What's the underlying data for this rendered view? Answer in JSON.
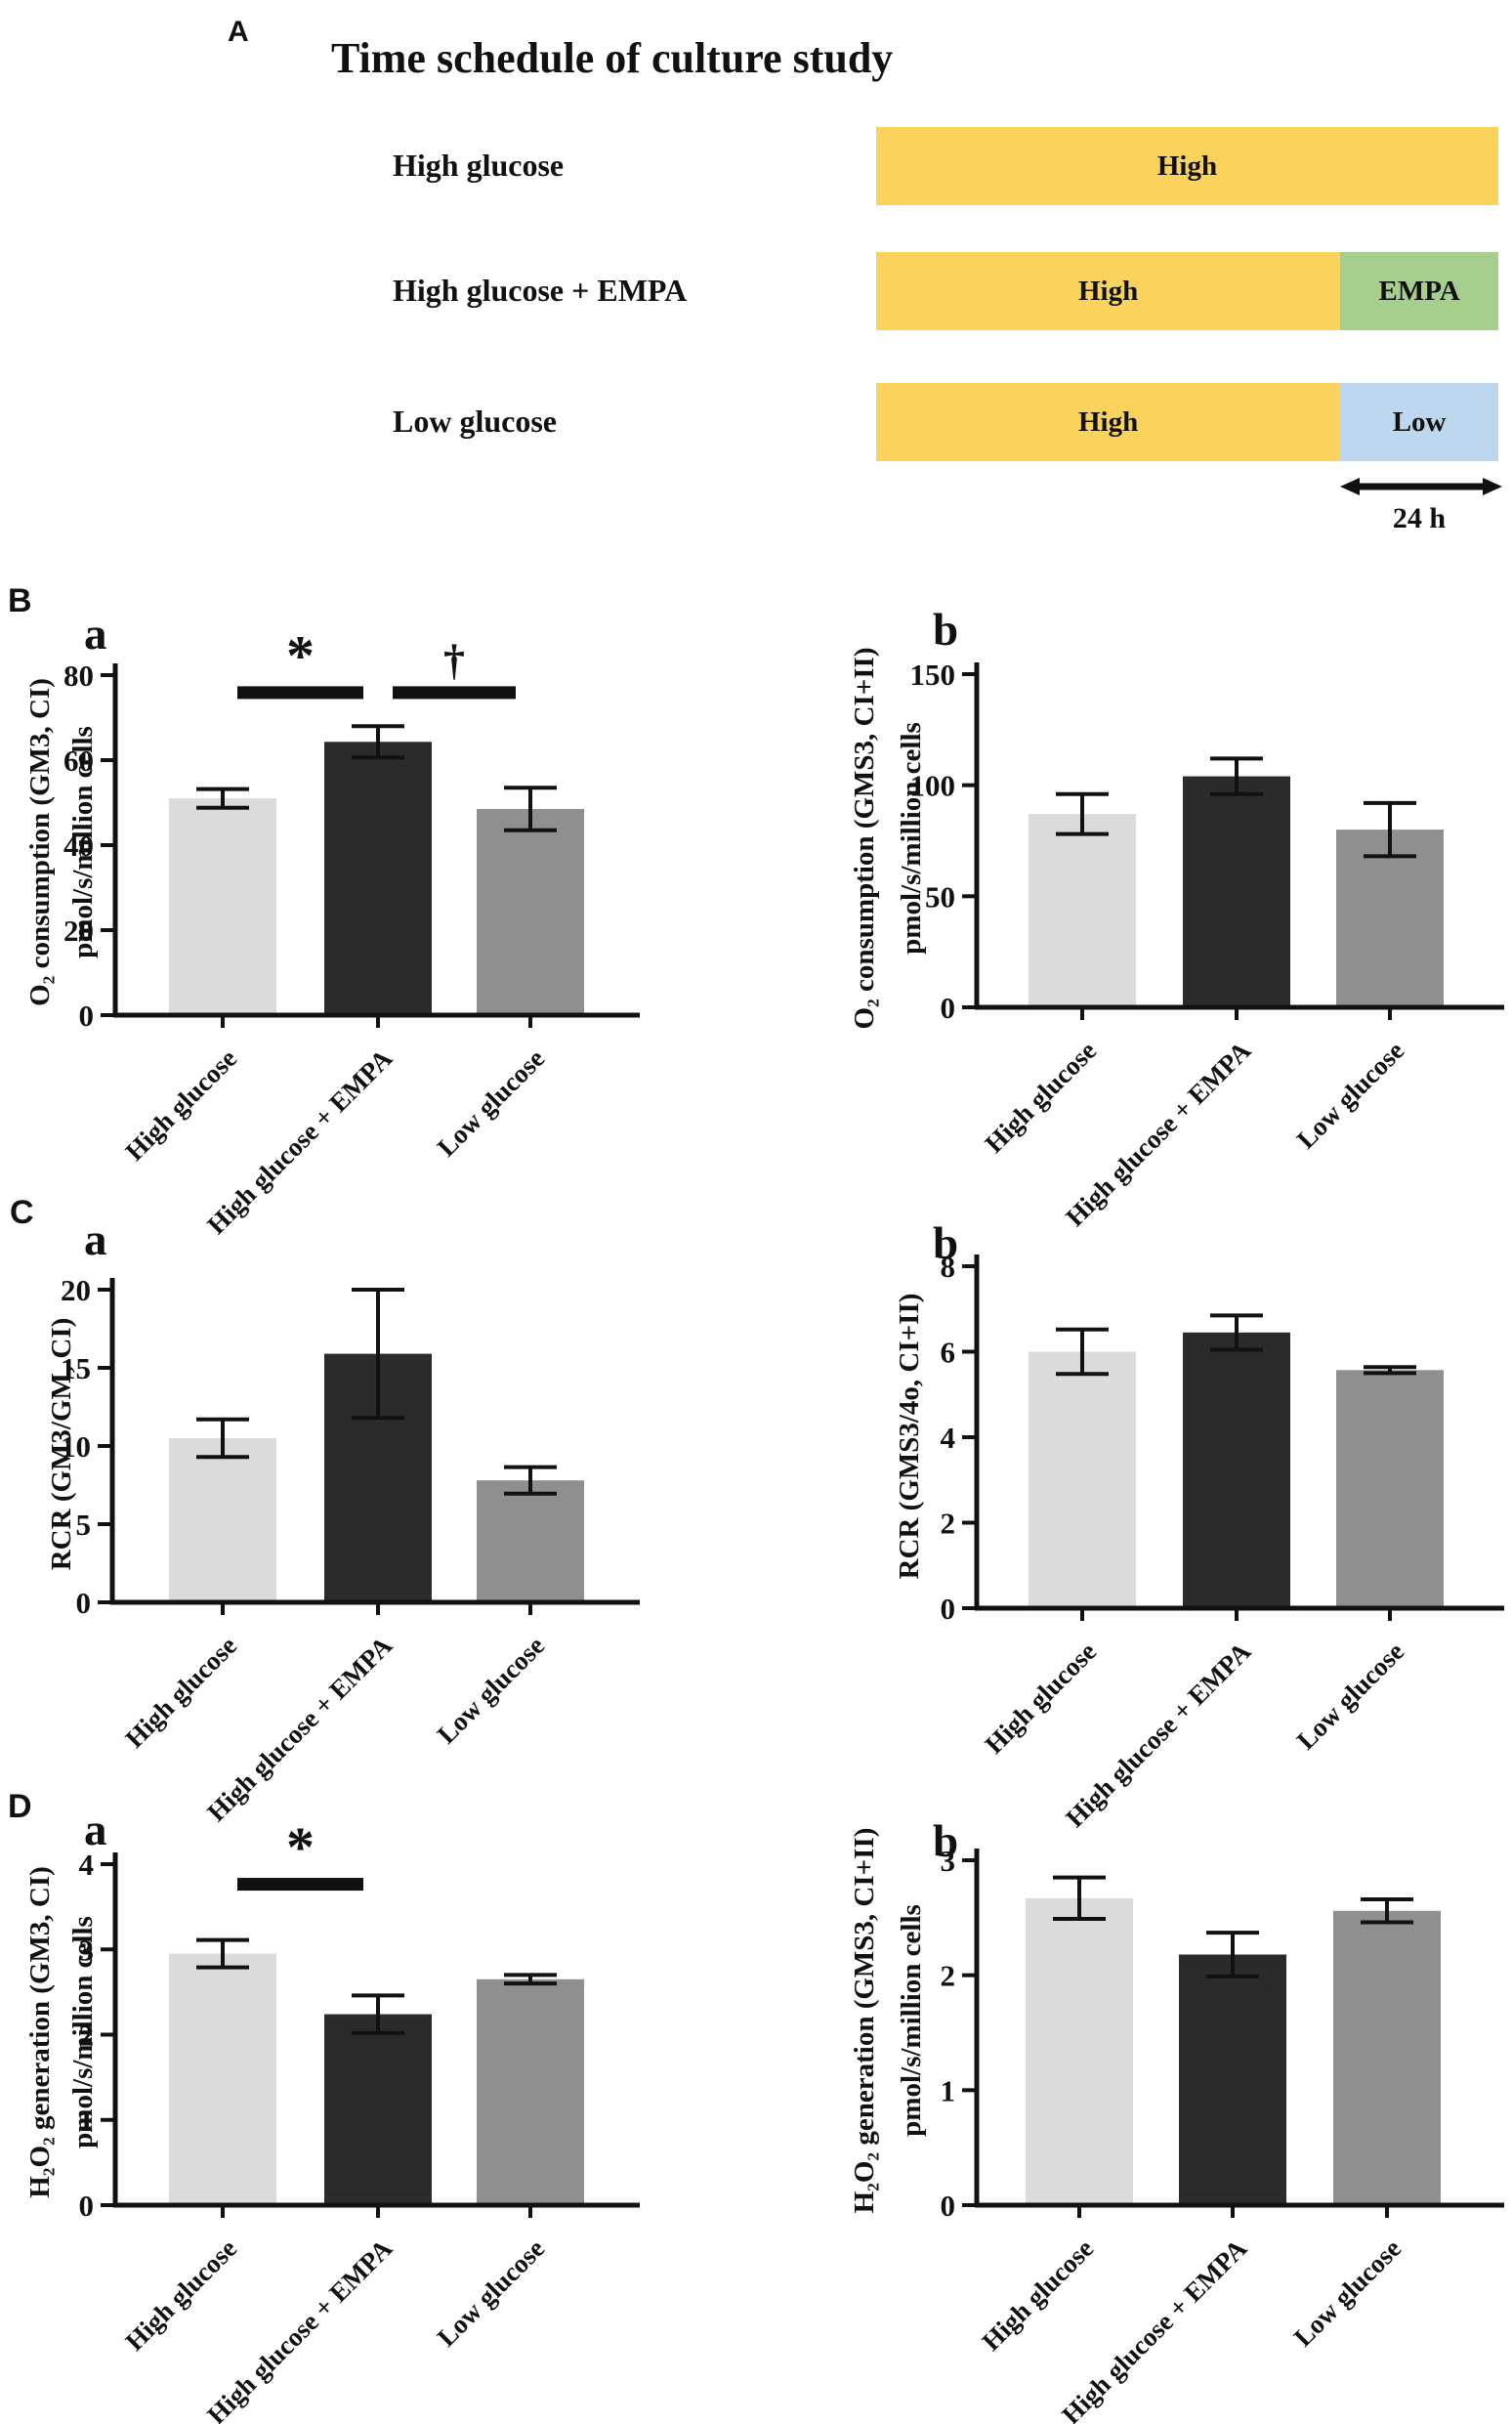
{
  "panel_a": {
    "label": "A",
    "title": "Time schedule of culture study",
    "arrow_label": "24 h",
    "colors": {
      "high": "#FBD35C",
      "empa": "#A6CE8C",
      "low": "#BDD7EE"
    },
    "rows": [
      {
        "label": "High glucose",
        "segments": [
          {
            "text": "High",
            "color_key": "high",
            "flex": 1
          }
        ]
      },
      {
        "label": "High glucose + EMPA",
        "segments": [
          {
            "text": "High",
            "color_key": "high",
            "flex": 0.746
          },
          {
            "text": "EMPA",
            "color_key": "empa",
            "flex": 0.254
          }
        ]
      },
      {
        "label": "Low glucose",
        "segments": [
          {
            "text": "High",
            "color_key": "high",
            "flex": 0.746
          },
          {
            "text": "Low",
            "color_key": "low",
            "flex": 0.254
          }
        ]
      }
    ]
  },
  "figure_labels": {
    "b": "B",
    "c": "C",
    "d": "D"
  },
  "categories": [
    "High glucose",
    "High glucose + EMPA",
    "Low glucose"
  ],
  "bar_colors": [
    "#DBDBDB",
    "#2B2B2B",
    "#8F8F8F"
  ],
  "chart_data": [
    {
      "id": "Ba",
      "panel": "B",
      "sub": "a",
      "type": "bar",
      "ylabel_lines": [
        "O₂ consumption (GM3, CI)",
        "pmol/s/million cells"
      ],
      "categories": [
        "High glucose",
        "High glucose + EMPA",
        "Low glucose"
      ],
      "values": [
        51,
        64.3,
        48.5
      ],
      "errors": [
        2.2,
        3.7,
        5.0
      ],
      "yticks": [
        0,
        20,
        40,
        60,
        80
      ],
      "ylim": [
        0,
        80
      ],
      "xlabel": "",
      "sig": [
        {
          "from": 0,
          "to": 1,
          "label": "*",
          "y": 76
        },
        {
          "from": 1,
          "to": 2,
          "label": "†",
          "y": 76
        }
      ]
    },
    {
      "id": "Bb",
      "panel": "B",
      "sub": "b",
      "type": "bar",
      "ylabel_lines": [
        "O₂ consumption (GMS3, CI+II)",
        "pmol/s/million cells"
      ],
      "categories": [
        "High glucose",
        "High glucose + EMPA",
        "Low glucose"
      ],
      "values": [
        87,
        104,
        80
      ],
      "errors": [
        9,
        8,
        12
      ],
      "yticks": [
        0,
        50,
        100,
        150
      ],
      "ylim": [
        0,
        150
      ],
      "xlabel": "",
      "sig": []
    },
    {
      "id": "Ca",
      "panel": "C",
      "sub": "a",
      "type": "bar",
      "ylabel_lines": [
        "RCR (GM3/GM, CI)"
      ],
      "categories": [
        "High glucose",
        "High glucose + EMPA",
        "Low glucose"
      ],
      "values": [
        10.5,
        15.9,
        7.8
      ],
      "errors": [
        1.2,
        4.1,
        0.85
      ],
      "yticks": [
        0,
        5,
        10,
        15,
        20
      ],
      "ylim": [
        0,
        20
      ],
      "xlabel": "",
      "sig": []
    },
    {
      "id": "Cb",
      "panel": "C",
      "sub": "b",
      "type": "bar",
      "ylabel_lines": [
        "RCR (GMS3/4o, CI+II)"
      ],
      "categories": [
        "High glucose",
        "High glucose + EMPA",
        "Low glucose"
      ],
      "values": [
        6.0,
        6.45,
        5.57
      ],
      "errors": [
        0.52,
        0.4,
        0.07
      ],
      "yticks": [
        0,
        2,
        4,
        6,
        8
      ],
      "ylim": [
        0,
        8
      ],
      "xlabel": "",
      "sig": []
    },
    {
      "id": "Da",
      "panel": "D",
      "sub": "a",
      "type": "bar",
      "ylabel_lines": [
        "H₂O₂ generation (GM3, CI)",
        "pmol/s/million cells"
      ],
      "categories": [
        "High glucose",
        "High glucose + EMPA",
        "Low glucose"
      ],
      "values": [
        2.95,
        2.24,
        2.65
      ],
      "errors": [
        0.16,
        0.22,
        0.05
      ],
      "yticks": [
        0,
        1,
        2,
        3,
        4
      ],
      "ylim": [
        0,
        4
      ],
      "xlabel": "",
      "sig": [
        {
          "from": 0,
          "to": 1,
          "label": "*",
          "y": 3.77
        }
      ]
    },
    {
      "id": "Db",
      "panel": "D",
      "sub": "b",
      "type": "bar",
      "ylabel_lines": [
        "H₂O₂ generation (GMS3, CI+II)",
        "pmol/s/million cells"
      ],
      "categories": [
        "High glucose",
        "High glucose + EMPA",
        "Low glucose"
      ],
      "values": [
        2.67,
        2.18,
        2.56
      ],
      "errors": [
        0.18,
        0.19,
        0.1
      ],
      "yticks": [
        0,
        1,
        2,
        3
      ],
      "ylim": [
        0,
        3
      ],
      "xlabel": "",
      "sig": []
    }
  ]
}
